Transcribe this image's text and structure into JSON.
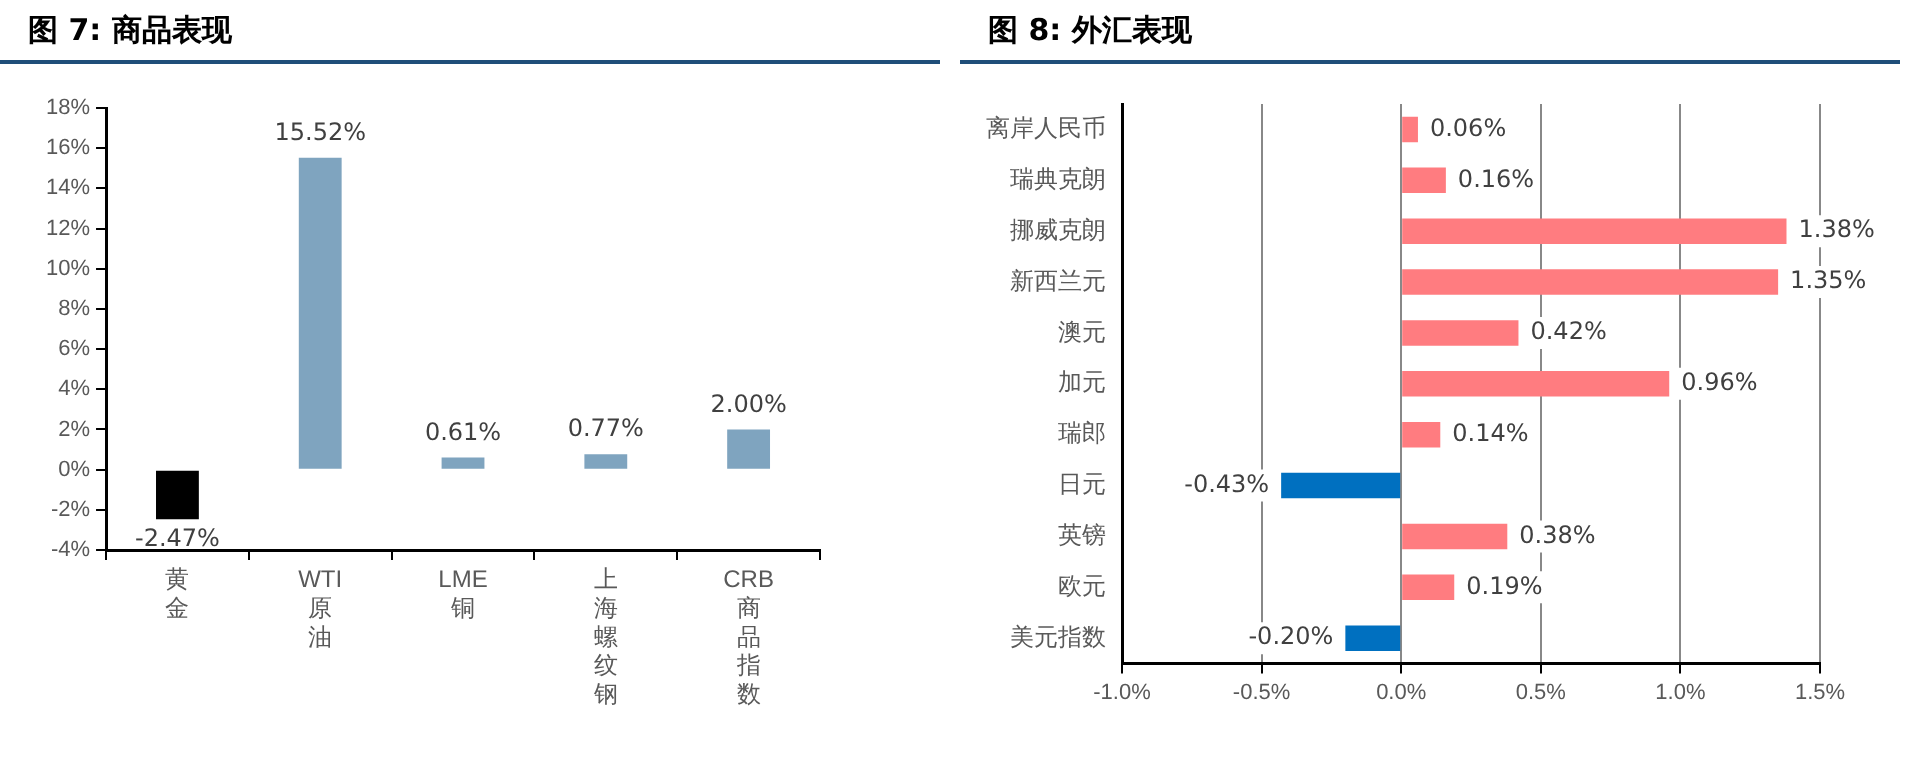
{
  "chart_data": [
    {
      "type": "bar",
      "title": "图 7: 商品表现",
      "categories": [
        "黄金",
        "WTI原油",
        "LME铜",
        "上海螺纹钢",
        "CRB商品指数"
      ],
      "values": [
        -2.47,
        15.52,
        0.61,
        0.77,
        2.0
      ],
      "colors": [
        "#000000",
        "#7fa4bf",
        "#7fa4bf",
        "#7fa4bf",
        "#7fa4bf"
      ],
      "value_labels": [
        "-2.47%",
        "15.52%",
        "0.61%",
        "0.77%",
        "2.00%"
      ],
      "ylim": [
        -4,
        18
      ],
      "yticks": [
        {
          "value": -4,
          "label": "-4%"
        },
        {
          "value": -2,
          "label": "-2%"
        },
        {
          "value": 0,
          "label": "0%"
        },
        {
          "value": 2,
          "label": "2%"
        },
        {
          "value": 4,
          "label": "4%"
        },
        {
          "value": 6,
          "label": "6%"
        },
        {
          "value": 8,
          "label": "8%"
        },
        {
          "value": 10,
          "label": "10%"
        },
        {
          "value": 12,
          "label": "12%"
        },
        {
          "value": 14,
          "label": "14%"
        },
        {
          "value": 16,
          "label": "16%"
        },
        {
          "value": 18,
          "label": "18%"
        }
      ],
      "grid": false,
      "legend": false
    },
    {
      "type": "bar",
      "title": "图 8: 外汇表现",
      "orientation": "horizontal",
      "categories": [
        "离岸人民币",
        "瑞典克朗",
        "挪威克朗",
        "新西兰元",
        "澳元",
        "加元",
        "瑞郎",
        "日元",
        "英镑",
        "欧元",
        "美元指数"
      ],
      "values": [
        0.06,
        0.16,
        1.38,
        1.35,
        0.42,
        0.96,
        0.14,
        -0.43,
        0.38,
        0.19,
        -0.2
      ],
      "colors": [
        "#ff7c80",
        "#ff7c80",
        "#ff7c80",
        "#ff7c80",
        "#ff7c80",
        "#ff7c80",
        "#ff7c80",
        "#0070c0",
        "#ff7c80",
        "#ff7c80",
        "#0070c0"
      ],
      "value_labels": [
        "0.06%",
        "0.16%",
        "1.38%",
        "1.35%",
        "0.42%",
        "0.96%",
        "0.14%",
        "-0.43%",
        "0.38%",
        "0.19%",
        "-0.20%"
      ],
      "xlim": [
        -1,
        1.5
      ],
      "xticks": [
        {
          "value": -1,
          "label": "-1.0%"
        },
        {
          "value": -0.5,
          "label": "-0.5%"
        },
        {
          "value": 0,
          "label": "0.0%"
        },
        {
          "value": 0.5,
          "label": "0.5%"
        },
        {
          "value": 1,
          "label": "1.0%"
        },
        {
          "value": 1.5,
          "label": "1.5%"
        }
      ],
      "grid": "x",
      "legend": false
    }
  ]
}
